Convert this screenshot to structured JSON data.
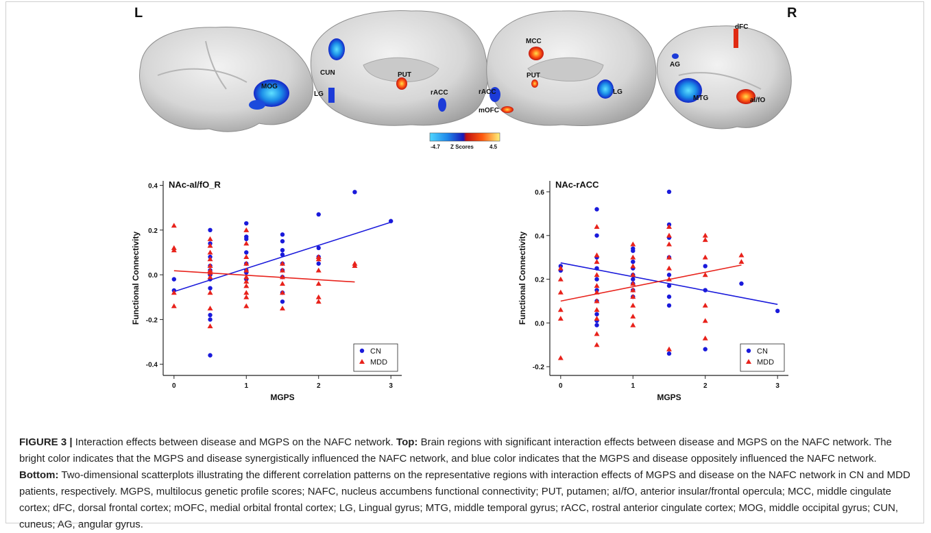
{
  "figure": {
    "hemi_left": "L",
    "hemi_right": "R",
    "colorbar": {
      "min_label": "-4.7",
      "title": "Z Scores",
      "max_label": "4.5"
    },
    "brain_regions": {
      "view1": [
        "MOG"
      ],
      "view2": [
        "CUN",
        "PUT",
        "LG",
        "rACC"
      ],
      "view3": [
        "MCC",
        "PUT",
        "rACC",
        "mOFC",
        "LG"
      ],
      "view4": [
        "dFC",
        "AG",
        "MTG",
        "aI/fO"
      ]
    }
  },
  "chart_data": [
    {
      "type": "scatter",
      "title": "NAc-aI/fO_R",
      "xlabel": "MGPS",
      "ylabel": "Functional Connectivity",
      "xlim": [
        -0.15,
        3.15
      ],
      "ylim": [
        -0.45,
        0.42
      ],
      "xticks": [
        "0",
        "1",
        "2",
        "3"
      ],
      "yticks": [
        "-0.4",
        "-0.2",
        "0.0",
        "0.2",
        "0.4"
      ],
      "legend_position": "bottom-right",
      "series": [
        {
          "name": "CN",
          "color": "#1a1adb",
          "marker": "circle",
          "points": [
            [
              0,
              -0.02
            ],
            [
              0,
              -0.07
            ],
            [
              0.5,
              0.2
            ],
            [
              0.5,
              0.14
            ],
            [
              0.5,
              0.08
            ],
            [
              0.5,
              0.04
            ],
            [
              0.5,
              0.02
            ],
            [
              0.5,
              0.0
            ],
            [
              0.5,
              -0.02
            ],
            [
              0.5,
              -0.06
            ],
            [
              0.5,
              -0.18
            ],
            [
              0.5,
              -0.2
            ],
            [
              0.5,
              -0.36
            ],
            [
              1,
              0.23
            ],
            [
              1,
              0.17
            ],
            [
              1,
              0.16
            ],
            [
              1,
              0.1
            ],
            [
              1,
              0.05
            ],
            [
              1,
              0.02
            ],
            [
              1,
              0.01
            ],
            [
              1,
              -0.02
            ],
            [
              1.5,
              0.18
            ],
            [
              1.5,
              0.15
            ],
            [
              1.5,
              0.11
            ],
            [
              1.5,
              0.09
            ],
            [
              1.5,
              0.05
            ],
            [
              1.5,
              0.02
            ],
            [
              1.5,
              -0.01
            ],
            [
              1.5,
              -0.08
            ],
            [
              1.5,
              -0.12
            ],
            [
              2,
              0.27
            ],
            [
              2,
              0.12
            ],
            [
              2,
              0.08
            ],
            [
              2,
              0.05
            ],
            [
              2.5,
              0.37
            ],
            [
              3,
              0.24
            ]
          ],
          "fit": [
            [
              0,
              -0.075
            ],
            [
              3,
              0.235
            ]
          ]
        },
        {
          "name": "MDD",
          "color": "#e8221b",
          "marker": "triangle",
          "points": [
            [
              0,
              0.22
            ],
            [
              0,
              0.12
            ],
            [
              0,
              0.11
            ],
            [
              0,
              -0.08
            ],
            [
              0,
              -0.14
            ],
            [
              0.5,
              0.16
            ],
            [
              0.5,
              0.13
            ],
            [
              0.5,
              0.1
            ],
            [
              0.5,
              0.07
            ],
            [
              0.5,
              0.04
            ],
            [
              0.5,
              0.02
            ],
            [
              0.5,
              0.01
            ],
            [
              0.5,
              -0.01
            ],
            [
              0.5,
              -0.08
            ],
            [
              0.5,
              -0.15
            ],
            [
              0.5,
              -0.23
            ],
            [
              1,
              0.2
            ],
            [
              1,
              0.14
            ],
            [
              1,
              0.08
            ],
            [
              1,
              0.05
            ],
            [
              1,
              0.02
            ],
            [
              1,
              -0.01
            ],
            [
              1,
              -0.03
            ],
            [
              1,
              -0.05
            ],
            [
              1,
              -0.08
            ],
            [
              1,
              -0.1
            ],
            [
              1,
              -0.14
            ],
            [
              1.5,
              0.05
            ],
            [
              1.5,
              0.02
            ],
            [
              1.5,
              -0.01
            ],
            [
              1.5,
              -0.04
            ],
            [
              1.5,
              -0.08
            ],
            [
              1.5,
              -0.15
            ],
            [
              2,
              0.08
            ],
            [
              2,
              0.07
            ],
            [
              2,
              0.02
            ],
            [
              2,
              -0.04
            ],
            [
              2,
              -0.1
            ],
            [
              2,
              -0.12
            ],
            [
              2.5,
              0.05
            ],
            [
              2.5,
              0.04
            ]
          ],
          "fit": [
            [
              0,
              0.018
            ],
            [
              2.5,
              -0.032
            ]
          ]
        }
      ]
    },
    {
      "type": "scatter",
      "title": "NAc-rACC",
      "xlabel": "MGPS",
      "ylabel": "Functional Connectivity",
      "xlim": [
        -0.15,
        3.15
      ],
      "ylim": [
        -0.24,
        0.65
      ],
      "xticks": [
        "0",
        "1",
        "2",
        "3"
      ],
      "yticks": [
        "-0.2",
        "0.0",
        "0.2",
        "0.4",
        "0.6"
      ],
      "legend_position": "bottom-right",
      "series": [
        {
          "name": "CN",
          "color": "#1a1adb",
          "marker": "circle",
          "points": [
            [
              0,
              0.26
            ],
            [
              0,
              0.24
            ],
            [
              0.5,
              0.52
            ],
            [
              0.5,
              0.4
            ],
            [
              0.5,
              0.3
            ],
            [
              0.5,
              0.25
            ],
            [
              0.5,
              0.2
            ],
            [
              0.5,
              0.15
            ],
            [
              0.5,
              0.1
            ],
            [
              0.5,
              0.04
            ],
            [
              0.5,
              0.01
            ],
            [
              0.5,
              -0.01
            ],
            [
              1,
              0.34
            ],
            [
              1,
              0.33
            ],
            [
              1,
              0.28
            ],
            [
              1,
              0.25
            ],
            [
              1,
              0.22
            ],
            [
              1,
              0.2
            ],
            [
              1,
              0.18
            ],
            [
              1,
              0.15
            ],
            [
              1,
              0.12
            ],
            [
              1.5,
              0.6
            ],
            [
              1.5,
              0.45
            ],
            [
              1.5,
              0.39
            ],
            [
              1.5,
              0.3
            ],
            [
              1.5,
              0.22
            ],
            [
              1.5,
              0.17
            ],
            [
              1.5,
              0.12
            ],
            [
              1.5,
              0.08
            ],
            [
              1.5,
              -0.14
            ],
            [
              2,
              0.26
            ],
            [
              2,
              0.15
            ],
            [
              2,
              -0.12
            ],
            [
              2.5,
              0.18
            ],
            [
              3,
              0.055
            ]
          ],
          "fit": [
            [
              0,
              0.275
            ],
            [
              3,
              0.085
            ]
          ]
        },
        {
          "name": "MDD",
          "color": "#e8221b",
          "marker": "triangle",
          "points": [
            [
              0,
              0.25
            ],
            [
              0,
              0.2
            ],
            [
              0,
              0.14
            ],
            [
              0,
              0.06
            ],
            [
              0,
              0.02
            ],
            [
              0,
              -0.16
            ],
            [
              0.5,
              0.44
            ],
            [
              0.5,
              0.31
            ],
            [
              0.5,
              0.28
            ],
            [
              0.5,
              0.22
            ],
            [
              0.5,
              0.17
            ],
            [
              0.5,
              0.14
            ],
            [
              0.5,
              0.1
            ],
            [
              0.5,
              0.06
            ],
            [
              0.5,
              0.02
            ],
            [
              0.5,
              -0.05
            ],
            [
              0.5,
              -0.1
            ],
            [
              1,
              0.36
            ],
            [
              1,
              0.3
            ],
            [
              1,
              0.26
            ],
            [
              1,
              0.22
            ],
            [
              1,
              0.18
            ],
            [
              1,
              0.15
            ],
            [
              1,
              0.12
            ],
            [
              1,
              0.08
            ],
            [
              1,
              0.03
            ],
            [
              1,
              -0.01
            ],
            [
              1.5,
              0.44
            ],
            [
              1.5,
              0.4
            ],
            [
              1.5,
              0.36
            ],
            [
              1.5,
              0.3
            ],
            [
              1.5,
              0.25
            ],
            [
              1.5,
              0.2
            ],
            [
              1.5,
              -0.12
            ],
            [
              2,
              0.4
            ],
            [
              2,
              0.38
            ],
            [
              2,
              0.3
            ],
            [
              2,
              0.22
            ],
            [
              2,
              0.08
            ],
            [
              2,
              0.01
            ],
            [
              2,
              -0.07
            ],
            [
              2.5,
              0.31
            ],
            [
              2.5,
              0.28
            ]
          ],
          "fit": [
            [
              0,
              0.1
            ],
            [
              2.5,
              0.265
            ]
          ]
        }
      ]
    }
  ],
  "caption": {
    "head": "FIGURE 3 |",
    "intro": " Interaction effects between disease and MGPS on the NAFC network. ",
    "top_label": "Top:",
    "top_text": " Brain regions with significant interaction effects between disease and MGPS on the NAFC network. The bright color indicates that the MGPS and disease synergistically influenced the NAFC network, and blue color indicates that the MGPS and disease oppositely influenced the NAFC network. ",
    "bottom_label": "Bottom:",
    "bottom_text": " Two-dimensional scatterplots illustrating the different correlation patterns on the representative regions with interaction effects of MGPS and disease on the NAFC network in CN and MDD patients, respectively. MGPS, multilocus genetic profile scores; NAFC, nucleus accumbens functional connectivity; PUT, putamen; aI/fO, anterior insular/frontal opercula; MCC, middle cingulate cortex; dFC, dorsal frontal cortex; mOFC, medial orbital frontal cortex; LG, Lingual gyrus; MTG, middle temporal gyrus; rACC, rostral anterior cingulate cortex; MOG, middle occipital gyrus; CUN, cuneus; AG, angular gyrus."
  }
}
